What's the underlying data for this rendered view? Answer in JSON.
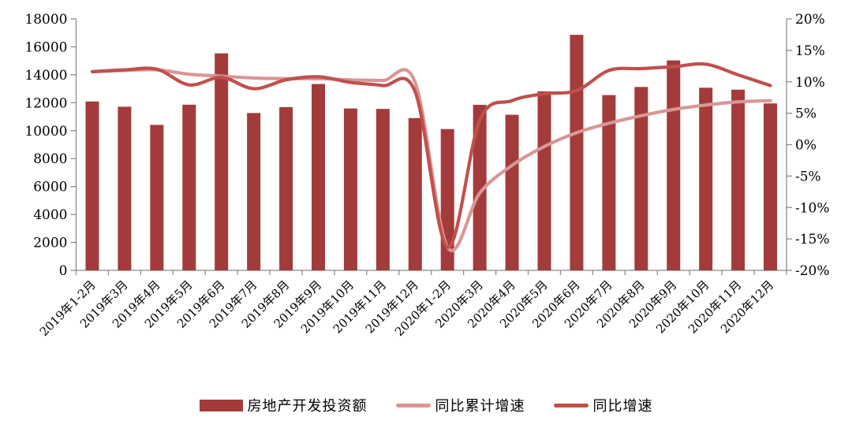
{
  "chart_data": {
    "type": "combo-bar-line",
    "title": "",
    "categories": [
      "2019年1-2月",
      "2019年3月",
      "2019年4月",
      "2019年5月",
      "2019年6月",
      "2019年7月",
      "2019年8月",
      "2019年9月",
      "2019年10月",
      "2019年11月",
      "2019年12月",
      "2020年1-2月",
      "2020年3月",
      "2020年4月",
      "2020年5月",
      "2020年6月",
      "2020年7月",
      "2020年8月",
      "2020年9月",
      "2020年10月",
      "2020年11月",
      "2020年12月"
    ],
    "series": [
      {
        "name": "房地产开发投资额",
        "type": "bar",
        "axis": "left",
        "color": "#A33B3B",
        "values": [
          12090,
          11713,
          10414,
          11858,
          15534,
          11264,
          11686,
          13340,
          11591,
          11557,
          10901,
          10115,
          11848,
          11140,
          12817,
          16860,
          12545,
          13129,
          15030,
          13072,
          12936,
          11951
        ]
      },
      {
        "name": "同比累计增速",
        "type": "line",
        "axis": "right",
        "color": "#D99694",
        "values": [
          11.6,
          11.8,
          11.9,
          11.2,
          10.9,
          10.6,
          10.5,
          10.5,
          10.3,
          10.2,
          9.9,
          -16.3,
          -7.7,
          -3.3,
          -0.3,
          1.9,
          3.4,
          4.6,
          5.6,
          6.3,
          6.8,
          7.0
        ]
      },
      {
        "name": "同比增速",
        "type": "line",
        "axis": "right",
        "color": "#C0504D",
        "values": [
          11.6,
          11.9,
          12.0,
          9.5,
          10.7,
          8.9,
          10.3,
          10.8,
          9.9,
          9.4,
          8.4,
          -16.3,
          3.9,
          7.0,
          8.1,
          8.6,
          11.8,
          12.1,
          12.4,
          12.8,
          11.1,
          9.4
        ]
      }
    ],
    "left_axis": {
      "min": 0,
      "max": 18000,
      "step": 2000,
      "ticks": [
        "0",
        "2000",
        "4000",
        "6000",
        "8000",
        "10000",
        "12000",
        "14000",
        "16000",
        "18000"
      ]
    },
    "right_axis": {
      "min": -20,
      "max": 20,
      "step": 5,
      "ticks": [
        "-20%",
        "-15%",
        "-10%",
        "-5%",
        "0%",
        "5%",
        "10%",
        "15%",
        "20%"
      ]
    },
    "legend_position": "bottom",
    "gridlines": false,
    "axis_color": "#8C8C8C",
    "text_color": "#000000",
    "smooth_lines": true
  }
}
